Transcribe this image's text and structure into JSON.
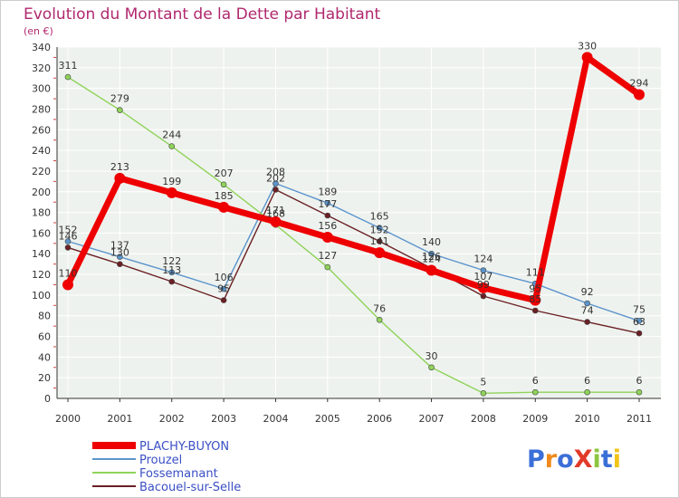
{
  "chart_data": {
    "type": "line",
    "title": "Evolution du Montant de la Dette par Habitant",
    "subtitle": "(en €)",
    "xlabel": "",
    "ylabel": "",
    "categories": [
      "2000",
      "2001",
      "2002",
      "2003",
      "2004",
      "2005",
      "2006",
      "2007",
      "2008",
      "2009",
      "2010",
      "2011"
    ],
    "ylim": [
      0,
      340
    ],
    "yticks": [
      0,
      20,
      40,
      60,
      80,
      100,
      120,
      140,
      160,
      180,
      200,
      220,
      240,
      260,
      280,
      300,
      320,
      340
    ],
    "grid": true,
    "legend_position": "bottom-left",
    "series": [
      {
        "name": "PLACHY-BUYON",
        "color": "#ee0000",
        "values": [
          110,
          213,
          199,
          185,
          171,
          156,
          141,
          124,
          107,
          95,
          330,
          294
        ],
        "labels": [
          "110",
          "213",
          "199",
          "185",
          "171",
          "156",
          "141",
          "124",
          "107",
          "95",
          "330",
          "294"
        ]
      },
      {
        "name": "Prouzel",
        "color": "#5b94cc",
        "values": [
          152,
          137,
          122,
          106,
          208,
          189,
          165,
          140,
          124,
          111,
          92,
          75
        ],
        "labels": [
          "152",
          "137",
          "122",
          "106",
          "208",
          "189",
          "165",
          "140",
          "124",
          "111",
          "92",
          "75"
        ]
      },
      {
        "name": "Fossemanant",
        "color": "#8fd35a",
        "values": [
          311,
          279,
          244,
          207,
          168,
          127,
          76,
          30,
          5,
          6,
          6,
          6
        ],
        "labels": [
          "311",
          "279",
          "244",
          "207",
          "168",
          "127",
          "76",
          "30",
          "5",
          "6",
          "6",
          "6"
        ]
      },
      {
        "name": "Bacouel-sur-Selle",
        "color": "#6b2024",
        "values": [
          146,
          130,
          113,
          95,
          202,
          177,
          152,
          126,
          99,
          85,
          74,
          63
        ],
        "labels": [
          "146",
          "130",
          "113",
          "95",
          "202",
          "177",
          "152",
          "126",
          "99",
          "85",
          "74",
          "63"
        ]
      }
    ]
  },
  "logo": {
    "text": "ProXiti",
    "colors": [
      "#3b6fd8",
      "#f08a1c",
      "#3b6fd8",
      "#e23a2a",
      "#8cc63f",
      "#3b6fd8",
      "#f0c419"
    ]
  }
}
